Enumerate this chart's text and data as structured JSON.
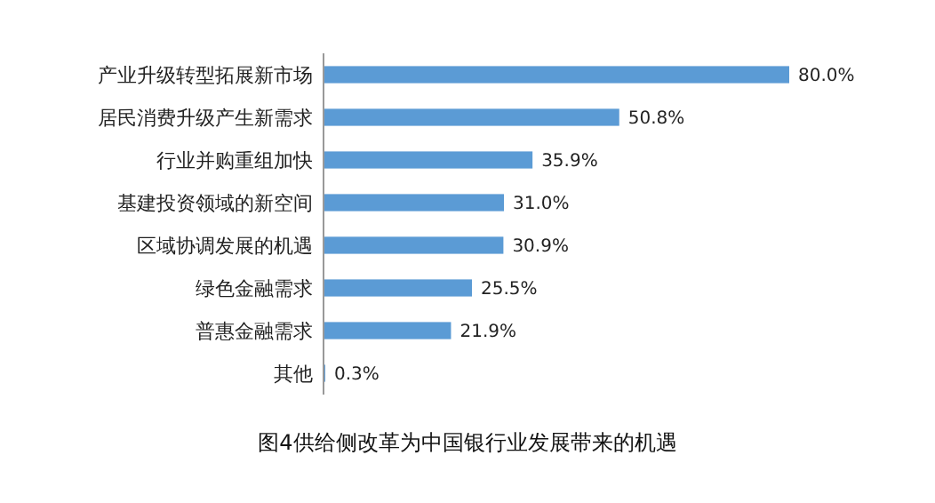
{
  "chart_data": {
    "type": "bar",
    "orientation": "horizontal",
    "title": "图4供给侧改革为中国银行业发展带来的机遇",
    "categories": [
      "产业升级转型拓展新市场",
      "居民消费升级产生新需求",
      "行业并购重组加快",
      "基建投资领域的新空间",
      "区域协调发展的机遇",
      "绿色金融需求",
      "普惠金融需求",
      "其他"
    ],
    "values": [
      80.0,
      50.8,
      35.9,
      31.0,
      30.9,
      25.5,
      21.9,
      0.3
    ],
    "value_labels": [
      "80.0%",
      "50.8%",
      "35.9%",
      "31.0%",
      "30.9%",
      "25.5%",
      "21.9%",
      "0.3%"
    ],
    "color": "#5b9bd5",
    "xlim": [
      0,
      80
    ]
  }
}
